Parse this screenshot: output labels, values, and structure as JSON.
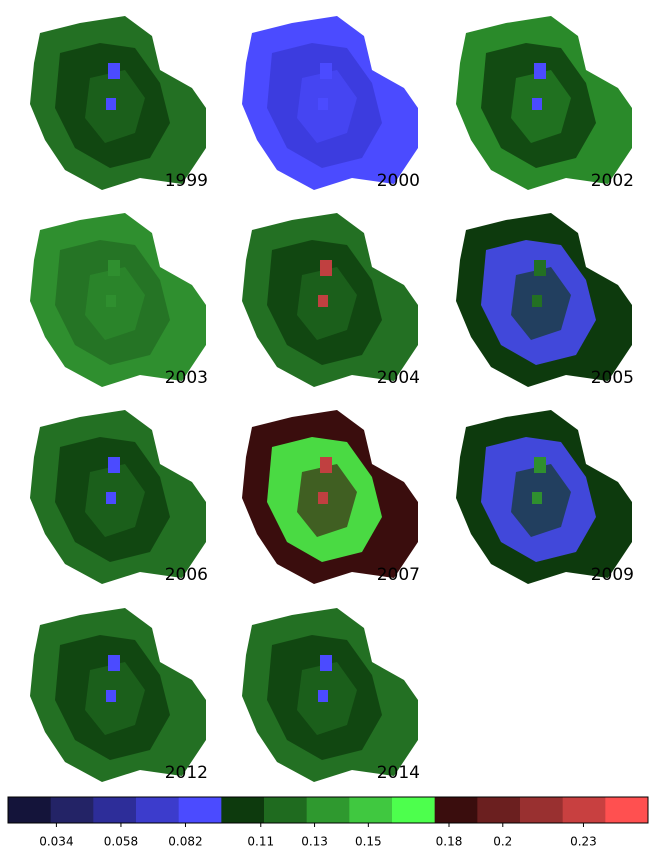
{
  "panels": [
    {
      "label": "1999",
      "colors": [
        "#237023",
        "#0e3f0e",
        "#4b4bff"
      ]
    },
    {
      "label": "2000",
      "colors": [
        "#4b4bff",
        "#3a3ad9",
        "#4b4bff"
      ]
    },
    {
      "label": "2002",
      "colors": [
        "#2a8a2a",
        "#0e3f0e",
        "#4b4bff"
      ]
    },
    {
      "label": "2003",
      "colors": [
        "#2f8f2f",
        "#237023",
        "#2f8f2f"
      ]
    },
    {
      "label": "2004",
      "colors": [
        "#237023",
        "#0e3f0e",
        "#c04040"
      ]
    },
    {
      "label": "2005",
      "colors": [
        "#0d3a0d",
        "#4b4bff",
        "#237023"
      ]
    },
    {
      "label": "2006",
      "colors": [
        "#237023",
        "#0e3f0e",
        "#4b4bff"
      ]
    },
    {
      "label": "2007",
      "colors": [
        "#3a0d0d",
        "#4dff4d",
        "#c04040"
      ]
    },
    {
      "label": "2009",
      "colors": [
        "#0d3a0d",
        "#4b4bff",
        "#2f8f2f"
      ]
    },
    {
      "label": "2012",
      "colors": [
        "#237023",
        "#0e3f0e",
        "#4b4bff"
      ]
    },
    {
      "label": "2014",
      "colors": [
        "#237023",
        "#0e3f0e",
        "#4b4bff"
      ]
    }
  ],
  "colorbar": {
    "colors": [
      "#14143a",
      "#232366",
      "#2d2d99",
      "#3c3ccc",
      "#4b4bff",
      "#0d3a0d",
      "#1f6b1f",
      "#2f992f",
      "#40c840",
      "#4dff4d",
      "#3a0d0d",
      "#6b1f1f",
      "#993030",
      "#c84040",
      "#ff5050"
    ],
    "lim": [
      0.016,
      0.254
    ],
    "ticks": [
      0.034,
      0.058,
      0.082,
      0.11,
      0.13,
      0.15,
      0.18,
      0.2,
      0.23
    ]
  }
}
